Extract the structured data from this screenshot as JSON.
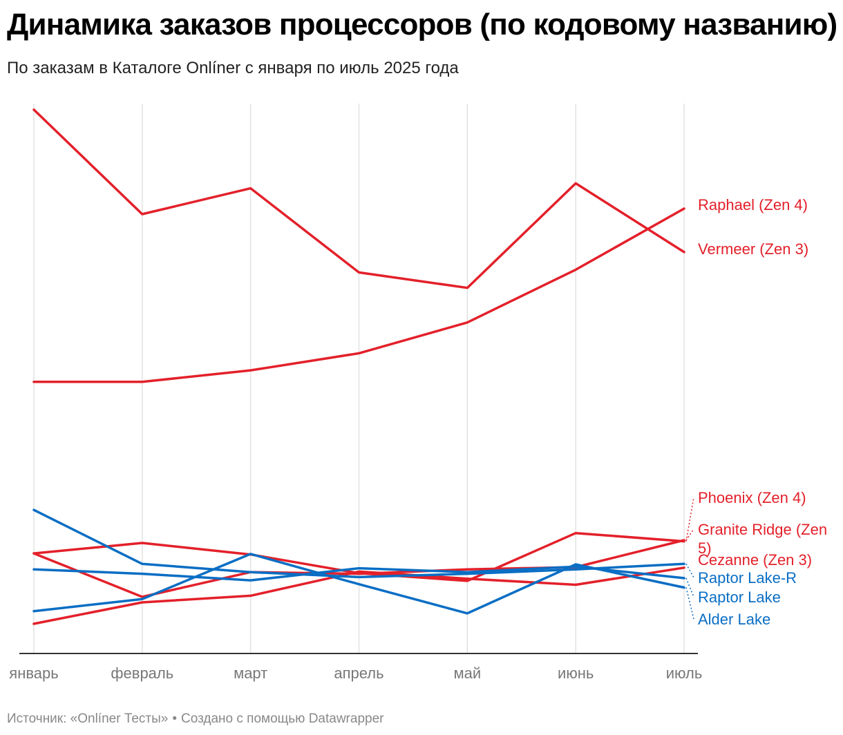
{
  "chart_data": {
    "type": "line",
    "title": "Динамика заказов процессоров (по кодовому названию)",
    "subtitle": "По заказам в Каталоге Onlíner с января по июль 2025 года",
    "categories": [
      "январь",
      "февраль",
      "март",
      "апрель",
      "май",
      "июнь",
      "июль"
    ],
    "ylim": [
      0,
      100
    ],
    "grid": "vertical",
    "legend": "inline-right",
    "series": [
      {
        "name": "Raphael (Zen 4)",
        "color": "#e3202a",
        "values": [
          49.4,
          49.4,
          51.5,
          54.6,
          60.2,
          69.8,
          80.9
        ]
      },
      {
        "name": "Vermeer (Zen 3)",
        "color": "#e3202a",
        "values": [
          98.9,
          79.9,
          84.6,
          69.3,
          66.5,
          85.5,
          73.0
        ]
      },
      {
        "name": "Phoenix (Zen 4)",
        "color": "#e3202a",
        "values": [
          18.2,
          20.1,
          18.0,
          14.6,
          13.2,
          21.9,
          20.4
        ]
      },
      {
        "name": "Granite Ridge (Zen 5)",
        "color": "#e3202a",
        "values": [
          18.2,
          10.3,
          14.8,
          14.5,
          15.3,
          15.7,
          20.6
        ]
      },
      {
        "name": "Cezanne (Zen 3)",
        "color": "#e3202a",
        "values": [
          5.4,
          9.3,
          10.5,
          14.9,
          13.6,
          12.5,
          15.6
        ]
      },
      {
        "name": "Raptor Lake-R",
        "color": "#0a6ec4",
        "values": [
          26.1,
          16.3,
          14.8,
          13.9,
          14.5,
          15.3,
          16.3
        ]
      },
      {
        "name": "Raptor Lake",
        "color": "#0a6ec4",
        "values": [
          15.3,
          14.5,
          13.3,
          15.5,
          14.8,
          15.8,
          13.7
        ]
      },
      {
        "name": "Alder Lake",
        "color": "#0a6ec4",
        "values": [
          7.7,
          9.9,
          18.1,
          12.6,
          7.3,
          16.2,
          12.0
        ]
      }
    ],
    "source": "Источник: «Onlíner Тесты»",
    "credit": "Создано с помощью Datawrapper",
    "separator": "•"
  }
}
